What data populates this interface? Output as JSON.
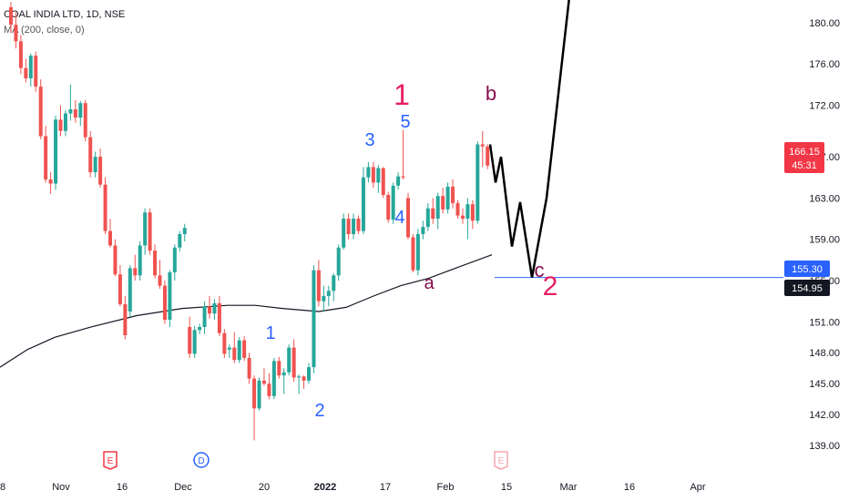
{
  "legend": {
    "symbol": "COAL INDIA LTD, 1D, NSE",
    "indicator": "MA (200, close, 0)"
  },
  "price_tag": {
    "price": "166.15",
    "countdown": "45:31",
    "color": "#f23645"
  },
  "level_tags": [
    {
      "label": "155.30",
      "value": 155.3,
      "bg": "#2962ff"
    },
    {
      "label": "154.95",
      "value": 154.95,
      "bg": "#131722"
    }
  ],
  "event_badges": [
    {
      "label": "E",
      "color": "#f23645"
    },
    {
      "label": "D",
      "color": "#2962ff"
    },
    {
      "label": "E",
      "color": "#f7a7ae"
    }
  ],
  "wave_labels": [
    {
      "text": "1",
      "color": "#2962ff"
    },
    {
      "text": "2",
      "color": "#2962ff"
    },
    {
      "text": "3",
      "color": "#2962ff"
    },
    {
      "text": "4",
      "color": "#2962ff"
    },
    {
      "text": "5",
      "color": "#2962ff"
    },
    {
      "text": "1",
      "color": "#e91e63"
    },
    {
      "text": "a",
      "color": "#880e4f"
    },
    {
      "text": "b",
      "color": "#880e4f"
    },
    {
      "text": "c",
      "color": "#880e4f"
    },
    {
      "text": "2",
      "color": "#e91e63"
    }
  ],
  "chart_data": {
    "type": "candlestick",
    "title": "COAL INDIA LTD, 1D, NSE",
    "ylim": [
      137.6,
      182.2
    ],
    "y_ticks": [
      "180.00",
      "176.00",
      "172.00",
      "167.00",
      "163.00",
      "159.00",
      "155.00",
      "151.00",
      "148.00",
      "145.00",
      "142.00",
      "139.00"
    ],
    "x_ticks": [
      "8",
      "Nov",
      "16",
      "Dec",
      "20",
      "2022",
      "17",
      "Feb",
      "15",
      "Mar",
      "16",
      "Apr"
    ],
    "bold_x_tick": "2022",
    "up_color": "#26a69a",
    "down_color": "#ef5350",
    "candles": [
      [
        181.5,
        182.0,
        179.0,
        179.8
      ],
      [
        179.8,
        181.0,
        177.5,
        178.2
      ],
      [
        178.2,
        178.8,
        175.0,
        175.6
      ],
      [
        175.6,
        176.5,
        174.2,
        174.6
      ],
      [
        174.6,
        177.0,
        173.8,
        176.8
      ],
      [
        176.8,
        177.2,
        173.3,
        173.8
      ],
      [
        173.8,
        174.5,
        168.7,
        169.0
      ],
      [
        169.0,
        170.0,
        164.5,
        164.8
      ],
      [
        164.8,
        165.5,
        163.4,
        164.4
      ],
      [
        164.4,
        171.0,
        163.8,
        170.6
      ],
      [
        170.6,
        172.0,
        169.0,
        169.5
      ],
      [
        169.5,
        171.5,
        169.0,
        171.2
      ],
      [
        171.2,
        174.0,
        170.5,
        171.6
      ],
      [
        171.6,
        172.5,
        170.3,
        170.8
      ],
      [
        170.8,
        172.4,
        170.0,
        172.2
      ],
      [
        172.2,
        172.5,
        168.5,
        168.9
      ],
      [
        168.9,
        169.5,
        165.0,
        165.5
      ],
      [
        165.5,
        167.5,
        165.0,
        167.0
      ],
      [
        167.0,
        167.8,
        164.0,
        164.3
      ],
      [
        164.3,
        165.0,
        159.5,
        159.8
      ],
      [
        159.8,
        161.0,
        158.2,
        158.4
      ],
      [
        158.4,
        159.0,
        155.4,
        155.6
      ],
      [
        155.6,
        156.5,
        152.5,
        152.7
      ],
      [
        152.7,
        153.5,
        149.3,
        149.7
      ],
      [
        152.0,
        156.5,
        151.5,
        156.2
      ],
      [
        156.2,
        157.5,
        155.0,
        155.5
      ],
      [
        155.5,
        158.8,
        155.0,
        158.4
      ],
      [
        158.4,
        162.0,
        157.5,
        161.6
      ],
      [
        161.6,
        162.0,
        157.5,
        157.9
      ],
      [
        157.9,
        158.5,
        155.2,
        155.5
      ],
      [
        155.5,
        157.0,
        154.2,
        154.5
      ],
      [
        154.5,
        155.0,
        150.8,
        151.2
      ],
      [
        151.2,
        156.0,
        150.5,
        155.8
      ],
      [
        155.8,
        158.5,
        155.0,
        158.2
      ],
      [
        158.2,
        159.8,
        157.8,
        159.5
      ],
      [
        159.5,
        160.5,
        158.8,
        160.1
      ],
      [
        150.5,
        151.5,
        147.5,
        147.9
      ],
      [
        147.9,
        150.6,
        147.5,
        150.2
      ],
      [
        150.2,
        150.8,
        149.8,
        150.5
      ],
      [
        150.5,
        153.0,
        149.8,
        152.5
      ],
      [
        152.5,
        153.5,
        151.3,
        151.8
      ],
      [
        151.8,
        153.2,
        151.2,
        152.8
      ],
      [
        152.8,
        153.5,
        149.6,
        149.9
      ],
      [
        149.9,
        150.3,
        147.5,
        147.9
      ],
      [
        148.3,
        148.8,
        147.5,
        148.5
      ],
      [
        148.5,
        150.0,
        147.0,
        147.3
      ],
      [
        147.3,
        149.5,
        147.0,
        149.2
      ],
      [
        149.2,
        149.6,
        147.2,
        147.5
      ],
      [
        147.5,
        148.0,
        145.0,
        145.5
      ],
      [
        145.5,
        145.8,
        139.5,
        142.6
      ],
      [
        142.6,
        145.6,
        142.4,
        145.3
      ],
      [
        145.3,
        146.5,
        144.8,
        145.0
      ],
      [
        145.0,
        146.0,
        143.5,
        143.8
      ],
      [
        143.8,
        147.5,
        143.5,
        147.2
      ],
      [
        147.2,
        147.6,
        145.5,
        145.8
      ],
      [
        145.8,
        146.5,
        144.0,
        146.1
      ],
      [
        146.1,
        148.8,
        145.8,
        148.5
      ],
      [
        148.5,
        149.3,
        145.2,
        145.6
      ],
      [
        145.6,
        145.9,
        144.0,
        145.7
      ],
      [
        145.7,
        145.8,
        144.5,
        145.3
      ],
      [
        145.3,
        147.0,
        145.0,
        146.6
      ],
      [
        146.6,
        156.5,
        146.0,
        156.0
      ],
      [
        156.0,
        157.0,
        152.5,
        153.0
      ],
      [
        153.0,
        154.5,
        152.0,
        153.5
      ],
      [
        153.5,
        154.5,
        152.5,
        154.0
      ],
      [
        154.0,
        155.7,
        153.0,
        155.5
      ],
      [
        155.5,
        158.5,
        155.0,
        158.2
      ],
      [
        158.2,
        161.5,
        158.0,
        161.0
      ],
      [
        161.0,
        161.5,
        159.0,
        159.5
      ],
      [
        159.5,
        161.5,
        159.0,
        161.0
      ],
      [
        161.0,
        161.3,
        159.5,
        159.8
      ],
      [
        159.8,
        166.0,
        159.5,
        165.0
      ],
      [
        165.0,
        166.5,
        164.5,
        166.0
      ],
      [
        166.0,
        166.5,
        164.0,
        164.5
      ],
      [
        164.5,
        166.2,
        163.5,
        165.9
      ],
      [
        165.9,
        166.0,
        163.0,
        163.3
      ],
      [
        163.3,
        163.6,
        160.6,
        160.9
      ],
      [
        160.9,
        164.5,
        160.5,
        164.2
      ],
      [
        164.2,
        165.5,
        163.8,
        165.1
      ],
      [
        165.1,
        169.6,
        164.8,
        165.0
      ],
      [
        163.0,
        163.5,
        159.0,
        159.2
      ],
      [
        159.2,
        159.5,
        155.8,
        156.0
      ],
      [
        156.0,
        160.0,
        155.5,
        159.5
      ],
      [
        159.5,
        160.8,
        159.0,
        160.2
      ],
      [
        160.2,
        162.5,
        159.8,
        162.0
      ],
      [
        162.0,
        163.0,
        160.5,
        161.0
      ],
      [
        161.0,
        163.5,
        160.0,
        163.2
      ],
      [
        163.2,
        164.0,
        161.5,
        161.9
      ],
      [
        161.9,
        164.5,
        161.5,
        164.1
      ],
      [
        164.1,
        164.8,
        162.0,
        162.5
      ],
      [
        162.5,
        162.8,
        161.0,
        161.3
      ],
      [
        161.3,
        162.0,
        160.5,
        161.0
      ],
      [
        161.0,
        163.0,
        159.0,
        162.4
      ],
      [
        162.4,
        162.8,
        160.0,
        160.8
      ],
      [
        160.8,
        168.5,
        160.5,
        168.2
      ],
      [
        168.2,
        169.5,
        166.0,
        168.0
      ],
      [
        168.0,
        168.2,
        165.8,
        166.15
      ]
    ],
    "ma_200": {
      "name": "MA (200, close, 0)",
      "color": "#131722",
      "points": [
        [
          0,
          146.6
        ],
        [
          30,
          148.3
        ],
        [
          60,
          149.5
        ],
        [
          100,
          150.5
        ],
        [
          150,
          151.6
        ],
        [
          200,
          152.3
        ],
        [
          250,
          152.6
        ],
        [
          280,
          152.6
        ],
        [
          310,
          152.3
        ],
        [
          350,
          152.0
        ],
        [
          380,
          152.4
        ],
        [
          410,
          153.5
        ],
        [
          440,
          154.5
        ],
        [
          470,
          155.2
        ],
        [
          500,
          156.2
        ],
        [
          540,
          157.5
        ]
      ]
    },
    "projection": {
      "color": "#000000",
      "points": [
        [
          538,
          168.2
        ],
        [
          544,
          164.5
        ],
        [
          550,
          167.0
        ],
        [
          562,
          158.3
        ],
        [
          571,
          162.6
        ],
        [
          584,
          155.3
        ],
        [
          600,
          163.0
        ],
        [
          625,
          182.5
        ]
      ]
    },
    "horizontal_level": {
      "value": 155.3,
      "color": "#2962ff"
    }
  }
}
